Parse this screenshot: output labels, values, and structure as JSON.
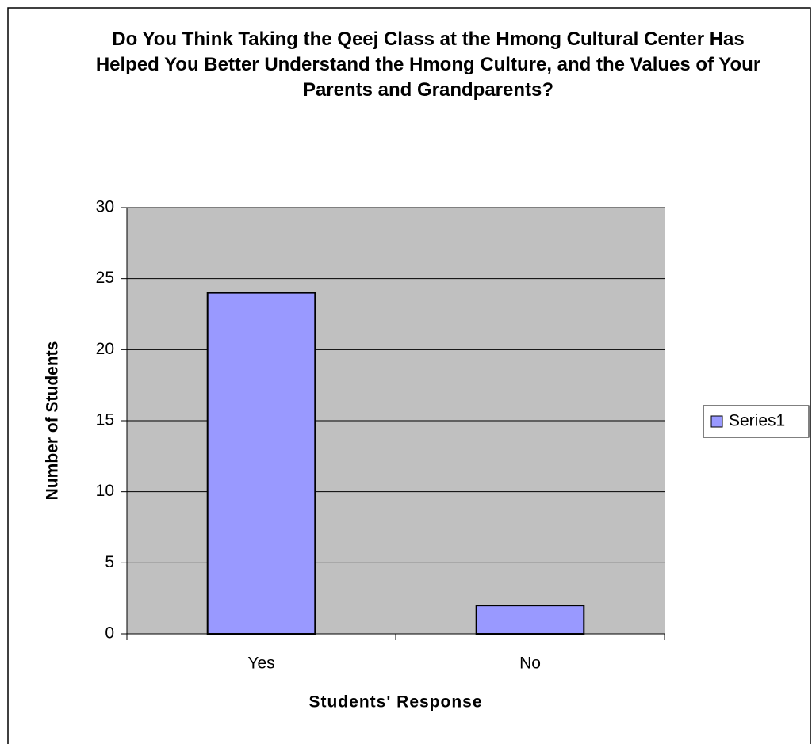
{
  "chart_data": {
    "type": "bar",
    "title": "Do You Think Taking the Qeej Class at the Hmong Cultural Center Has Helped You Better Understand the Hmong Culture, and the Values of Your Parents and Grandparents?",
    "x_label": "Students' Response",
    "y_label": "Number of Students",
    "categories": [
      "Yes",
      "No"
    ],
    "series": [
      {
        "name": "Series1",
        "color": "#9999ff",
        "values": [
          24,
          2
        ]
      }
    ],
    "ylim": [
      0,
      30
    ],
    "yticks": [
      0,
      5,
      10,
      15,
      20,
      25,
      30
    ],
    "grid": true,
    "legend": "right"
  }
}
